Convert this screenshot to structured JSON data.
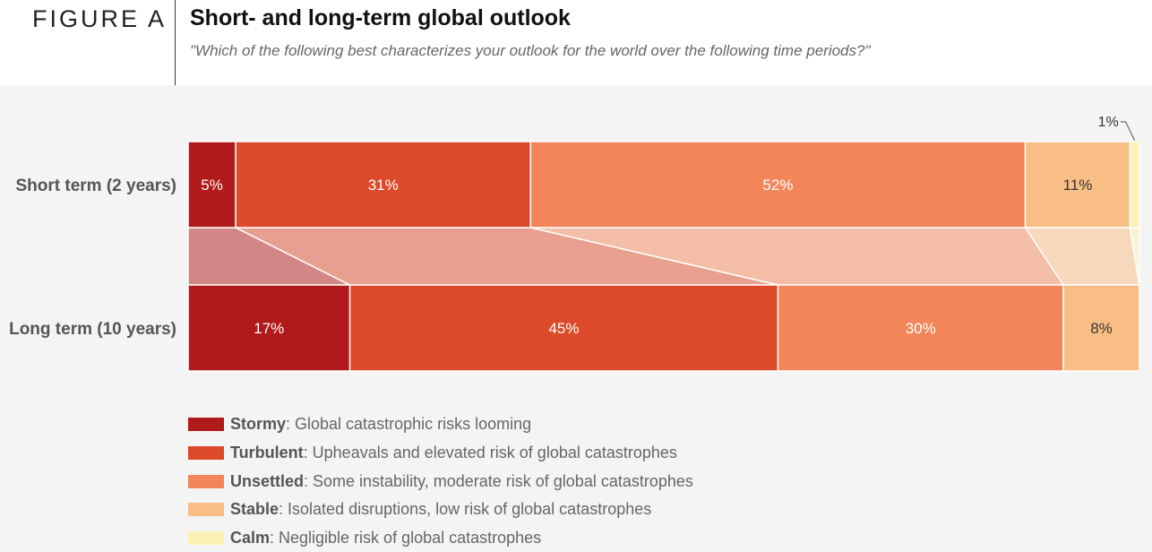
{
  "header": {
    "figure_label": "FIGURE A",
    "title": "Short- and long-term global outlook",
    "subtitle": "\"Which of the following best characterizes your outlook for the world over the following time periods?\""
  },
  "chart_data": {
    "type": "bar",
    "orientation": "horizontal",
    "stacked": true,
    "normalized": true,
    "unit": "%",
    "categories": [
      "Short term (2 years)",
      "Long term (10 years)"
    ],
    "series": [
      {
        "name": "Stormy",
        "color": "#b01a1a",
        "label_color": "#ffffff",
        "values": [
          5,
          17
        ]
      },
      {
        "name": "Turbulent",
        "color": "#dd4a2a",
        "label_color": "#ffffff",
        "values": [
          31,
          45
        ]
      },
      {
        "name": "Unsettled",
        "color": "#f2865a",
        "label_color": "#ffffff",
        "values": [
          52,
          30
        ]
      },
      {
        "name": "Stable",
        "color": "#f8be86",
        "label_color": "#333333",
        "values": [
          11,
          8
        ]
      },
      {
        "name": "Calm",
        "color": "#fdf0b4",
        "label_color": "#333333",
        "values": [
          1,
          0
        ]
      }
    ],
    "data_labels": [
      [
        "5%",
        "31%",
        "52%",
        "11%",
        "1%"
      ],
      [
        "17%",
        "45%",
        "30%",
        "8%",
        ""
      ]
    ],
    "grid": false,
    "legend": {
      "position": "bottom-left",
      "items": [
        {
          "name": "Stormy",
          "desc": ": Global catastrophic risks looming",
          "color": "#b01a1a"
        },
        {
          "name": "Turbulent",
          "desc": ": Upheavals and elevated risk of global catastrophes",
          "color": "#dd4a2a"
        },
        {
          "name": "Unsettled",
          "desc": ": Some instability, moderate risk of global catastrophes",
          "color": "#f2865a"
        },
        {
          "name": "Stable",
          "desc": ": Isolated disruptions, low risk of global catastrophes",
          "color": "#f8be86"
        },
        {
          "name": "Calm",
          "desc": ": Negligible risk of global catastrophes",
          "color": "#fdf0b4"
        }
      ]
    }
  }
}
